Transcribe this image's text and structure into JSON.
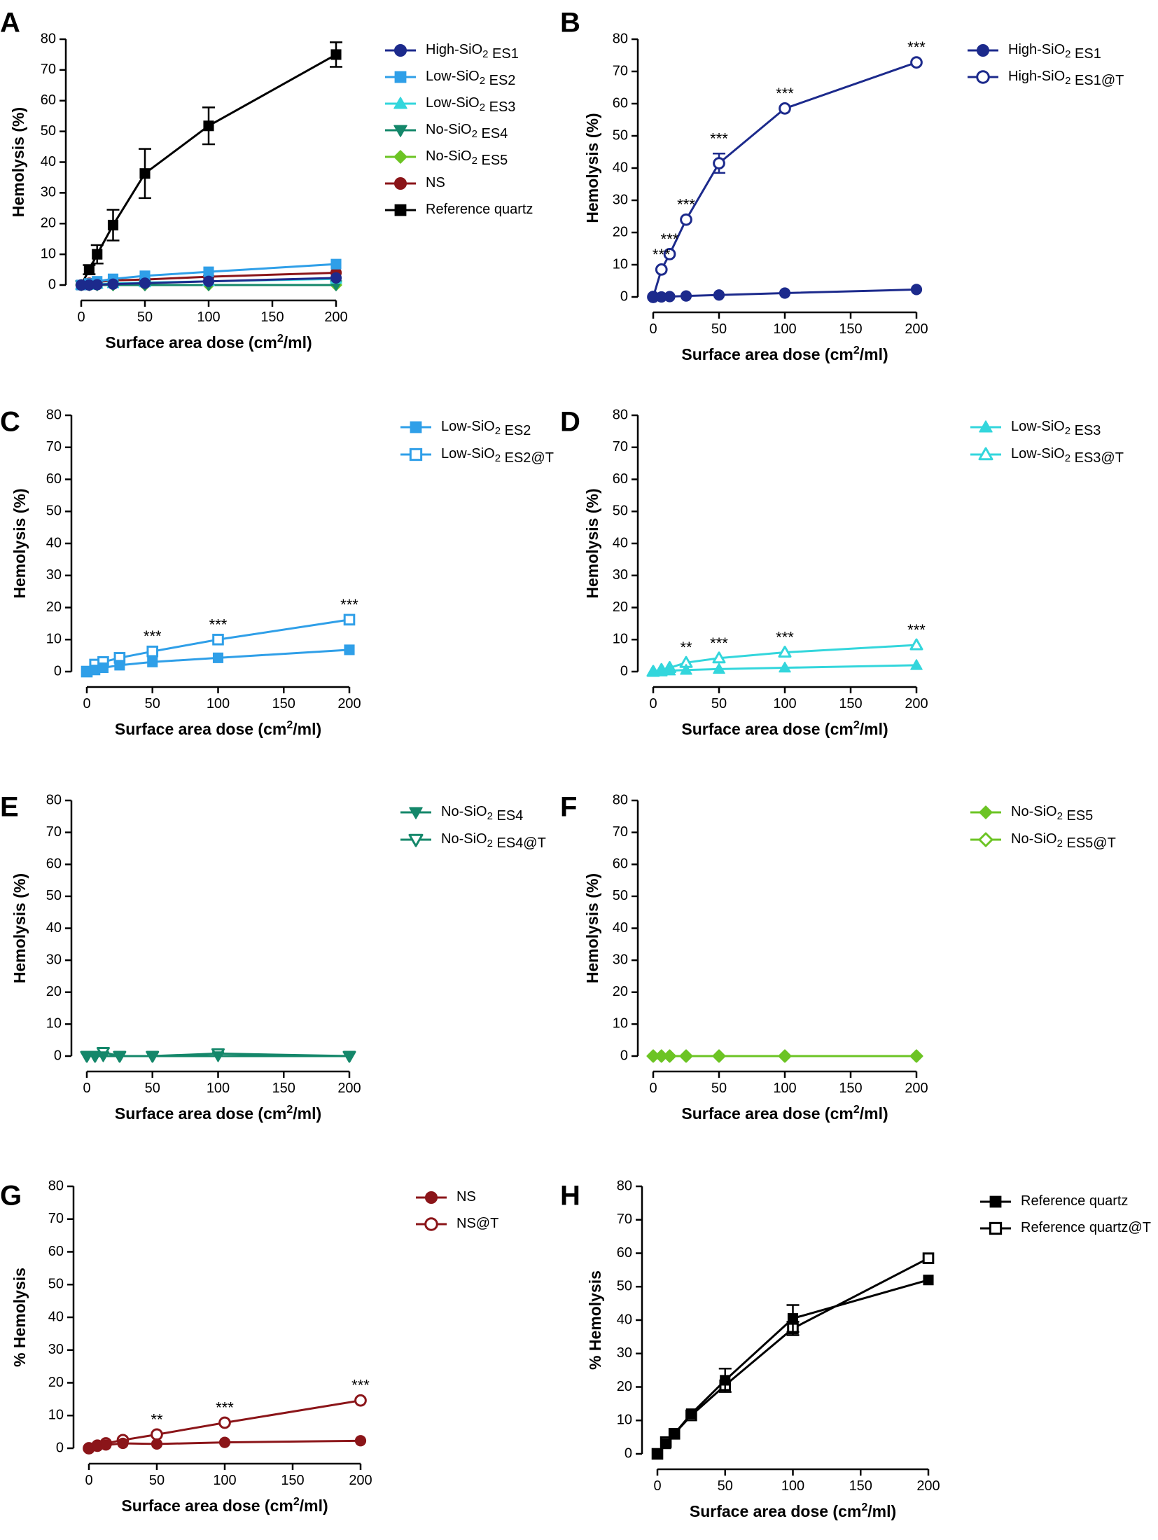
{
  "figure": {
    "panels": [
      {
        "letter": "A",
        "ylabel": "Hemolysis (%)",
        "xlabel": "Surface area dose (cm²/ml)",
        "legend": [
          {
            "label": "High-SiO₂ ES1"
          },
          {
            "label": "Low-SiO₂ ES2"
          },
          {
            "label": "Low-SiO₂ ES3"
          },
          {
            "label": "No-SiO₂ ES4"
          },
          {
            "label": "No-SiO₂ ES5"
          },
          {
            "label": "NS"
          },
          {
            "label": "Reference quartz"
          }
        ]
      },
      {
        "letter": "B",
        "ylabel": "Hemolysis (%)",
        "xlabel": "Surface area dose (cm²/ml)",
        "legend": [
          {
            "label": "High-SiO₂ ES1"
          },
          {
            "label": "High-SiO₂ ES1@T"
          }
        ]
      },
      {
        "letter": "C",
        "ylabel": "Hemolysis (%)",
        "xlabel": "Surface area dose (cm²/ml)",
        "legend": [
          {
            "label": "Low-SiO₂ ES2"
          },
          {
            "label": "Low-SiO₂ ES2@T"
          }
        ]
      },
      {
        "letter": "D",
        "ylabel": "Hemolysis (%)",
        "xlabel": "Surface area dose (cm²/ml)",
        "legend": [
          {
            "label": "Low-SiO₂ ES3"
          },
          {
            "label": "Low-SiO₂ ES3@T"
          }
        ]
      },
      {
        "letter": "E",
        "ylabel": "Hemolysis (%)",
        "xlabel": "Surface area dose (cm²/ml)",
        "legend": [
          {
            "label": "No-SiO₂ ES4"
          },
          {
            "label": "No-SiO₂ ES4@T"
          }
        ]
      },
      {
        "letter": "F",
        "ylabel": "Hemolysis (%)",
        "xlabel": "Surface area dose (cm²/ml)",
        "legend": [
          {
            "label": "No-SiO₂ ES5"
          },
          {
            "label": "No-SiO₂ ES5@T"
          }
        ]
      },
      {
        "letter": "G",
        "ylabel": "% Hemolysis",
        "xlabel": "Surface area dose (cm²/ml)",
        "legend": [
          {
            "label": "NS"
          },
          {
            "label": "NS@T"
          }
        ]
      },
      {
        "letter": "H",
        "ylabel": "% Hemolysis",
        "xlabel": "Surface area dose (cm²/ml)",
        "legend": [
          {
            "label": "Reference quartz"
          },
          {
            "label": "Reference quartz@T"
          }
        ]
      }
    ]
  },
  "chart_data": [
    {
      "panel": "A",
      "type": "line",
      "xlabel": "Surface area dose (cm²/ml)",
      "ylabel": "Hemolysis (%)",
      "xlim": [
        0,
        200
      ],
      "ylim": [
        0,
        80
      ],
      "xticks": [
        0,
        50,
        100,
        150,
        200
      ],
      "yticks": [
        0,
        10,
        20,
        30,
        40,
        50,
        60,
        70,
        80
      ],
      "x": [
        0,
        6.25,
        12.5,
        25,
        50,
        100,
        200
      ],
      "series": [
        {
          "name": "High-SiO₂ ES1",
          "color": "#1c2a8c",
          "marker": "circle",
          "filled": true,
          "values": [
            0,
            0,
            0.1,
            0.3,
            0.6,
            1.2,
            2.3
          ]
        },
        {
          "name": "Low-SiO₂ ES2",
          "color": "#2f9fe8",
          "marker": "square",
          "filled": true,
          "values": [
            0,
            0.5,
            1.2,
            2,
            3,
            4.3,
            6.8
          ]
        },
        {
          "name": "Low-SiO₂ ES3",
          "color": "#33d6dc",
          "marker": "triangle-up",
          "filled": true,
          "values": [
            0,
            0,
            0.3,
            0.5,
            0.8,
            1.2,
            2
          ]
        },
        {
          "name": "No-SiO₂ ES4",
          "color": "#14876a",
          "marker": "triangle-down",
          "filled": true,
          "values": [
            0,
            0,
            0,
            0,
            0,
            0,
            0
          ]
        },
        {
          "name": "No-SiO₂ ES5",
          "color": "#6cc424",
          "marker": "diamond",
          "filled": true,
          "values": [
            0,
            0,
            0,
            0,
            0,
            0,
            0
          ]
        },
        {
          "name": "NS",
          "color": "#8b1519",
          "marker": "circle",
          "filled": true,
          "values": [
            0,
            0.6,
            1,
            1.5,
            1.8,
            2.7,
            4
          ]
        },
        {
          "name": "Reference quartz",
          "color": "#000000",
          "marker": "square",
          "filled": true,
          "values": [
            0,
            5,
            10,
            19.5,
            36.3,
            51.8,
            75
          ],
          "err": [
            0,
            1.5,
            3,
            5,
            8,
            6,
            4
          ]
        }
      ]
    },
    {
      "panel": "B",
      "type": "line",
      "xlabel": "Surface area dose (cm²/ml)",
      "ylabel": "Hemolysis (%)",
      "xlim": [
        0,
        200
      ],
      "ylim": [
        0,
        80
      ],
      "xticks": [
        0,
        50,
        100,
        150,
        200
      ],
      "yticks": [
        0,
        10,
        20,
        30,
        40,
        50,
        60,
        70,
        80
      ],
      "x": [
        0,
        6.25,
        12.5,
        25,
        50,
        100,
        200
      ],
      "series": [
        {
          "name": "High-SiO₂ ES1",
          "color": "#1c2a8c",
          "marker": "circle",
          "filled": true,
          "values": [
            0,
            0,
            0.1,
            0.3,
            0.6,
            1.2,
            2.3
          ]
        },
        {
          "name": "High-SiO₂ ES1@T",
          "color": "#1c2a8c",
          "marker": "circle",
          "filled": false,
          "values": [
            0,
            8.5,
            13.3,
            24,
            41.5,
            58.5,
            72.8
          ],
          "err": [
            0,
            0,
            0,
            0,
            3,
            0,
            0
          ],
          "sig": [
            "",
            "***",
            "***",
            "***",
            "***",
            "***",
            "***"
          ]
        }
      ]
    },
    {
      "panel": "C",
      "type": "line",
      "xlabel": "Surface area dose (cm²/ml)",
      "ylabel": "Hemolysis (%)",
      "xlim": [
        0,
        200
      ],
      "ylim": [
        0,
        80
      ],
      "xticks": [
        0,
        50,
        100,
        150,
        200
      ],
      "yticks": [
        0,
        10,
        20,
        30,
        40,
        50,
        60,
        70,
        80
      ],
      "x": [
        0,
        6.25,
        12.5,
        25,
        50,
        100,
        200
      ],
      "series": [
        {
          "name": "Low-SiO₂ ES2",
          "color": "#2f9fe8",
          "marker": "square",
          "filled": true,
          "values": [
            0,
            0.5,
            1.2,
            2,
            3,
            4.3,
            6.8
          ]
        },
        {
          "name": "Low-SiO₂ ES2@T",
          "color": "#2f9fe8",
          "marker": "square",
          "filled": false,
          "values": [
            0,
            2.2,
            3,
            4.3,
            6.3,
            10,
            16.2
          ],
          "sig": [
            "",
            "",
            "",
            "",
            "***",
            "***",
            "***"
          ]
        }
      ]
    },
    {
      "panel": "D",
      "type": "line",
      "xlabel": "Surface area dose (cm²/ml)",
      "ylabel": "Hemolysis (%)",
      "xlim": [
        0,
        200
      ],
      "ylim": [
        0,
        80
      ],
      "xticks": [
        0,
        50,
        100,
        150,
        200
      ],
      "yticks": [
        0,
        10,
        20,
        30,
        40,
        50,
        60,
        70,
        80
      ],
      "x": [
        0,
        6.25,
        12.5,
        25,
        50,
        100,
        200
      ],
      "series": [
        {
          "name": "Low-SiO₂ ES3",
          "color": "#33d6dc",
          "marker": "triangle-up",
          "filled": true,
          "values": [
            0,
            0,
            0.3,
            0.5,
            0.8,
            1.2,
            2
          ]
        },
        {
          "name": "Low-SiO₂ ES3@T",
          "color": "#33d6dc",
          "marker": "triangle-up",
          "filled": false,
          "values": [
            0,
            0.6,
            1.2,
            2.8,
            4.2,
            6,
            8.3
          ],
          "sig": [
            "",
            "",
            "",
            "**",
            "***",
            "***",
            "***"
          ]
        }
      ]
    },
    {
      "panel": "E",
      "type": "line",
      "xlabel": "Surface area dose (cm²/ml)",
      "ylabel": "Hemolysis (%)",
      "xlim": [
        0,
        200
      ],
      "ylim": [
        0,
        80
      ],
      "xticks": [
        0,
        50,
        100,
        150,
        200
      ],
      "yticks": [
        0,
        10,
        20,
        30,
        40,
        50,
        60,
        70,
        80
      ],
      "x": [
        0,
        6.25,
        12.5,
        25,
        50,
        100,
        200
      ],
      "series": [
        {
          "name": "No-SiO₂ ES4",
          "color": "#14876a",
          "marker": "triangle-down",
          "filled": true,
          "values": [
            0,
            0,
            0,
            0,
            0,
            0,
            0
          ]
        },
        {
          "name": "No-SiO₂ ES4@T",
          "color": "#14876a",
          "marker": "triangle-down",
          "filled": false,
          "values": [
            0,
            0,
            1.2,
            0,
            0,
            0.8,
            0
          ]
        }
      ]
    },
    {
      "panel": "F",
      "type": "line",
      "xlabel": "Surface area dose (cm²/ml)",
      "ylabel": "Hemolysis (%)",
      "xlim": [
        0,
        200
      ],
      "ylim": [
        0,
        80
      ],
      "xticks": [
        0,
        50,
        100,
        150,
        200
      ],
      "yticks": [
        0,
        10,
        20,
        30,
        40,
        50,
        60,
        70,
        80
      ],
      "x": [
        0,
        6.25,
        12.5,
        25,
        50,
        100,
        200
      ],
      "series": [
        {
          "name": "No-SiO₂ ES5",
          "color": "#6cc424",
          "marker": "diamond",
          "filled": true,
          "values": [
            0,
            0,
            0,
            0,
            0,
            0,
            0
          ]
        },
        {
          "name": "No-SiO₂ ES5@T",
          "color": "#6cc424",
          "marker": "diamond",
          "filled": false,
          "values": [
            0,
            0,
            0,
            0,
            0,
            0,
            0
          ]
        }
      ]
    },
    {
      "panel": "G",
      "type": "line",
      "xlabel": "Surface area dose (cm²/ml)",
      "ylabel": "% Hemolysis",
      "xlim": [
        0,
        200
      ],
      "ylim": [
        0,
        80
      ],
      "xticks": [
        0,
        50,
        100,
        150,
        200
      ],
      "yticks": [
        0,
        10,
        20,
        30,
        40,
        50,
        60,
        70,
        80
      ],
      "x": [
        0,
        6.25,
        12.5,
        25,
        50,
        100,
        200
      ],
      "series": [
        {
          "name": "NS",
          "color": "#8b1519",
          "marker": "circle",
          "filled": true,
          "values": [
            0,
            0.6,
            1,
            1.5,
            1.3,
            1.8,
            2.3
          ]
        },
        {
          "name": "NS@T",
          "color": "#8b1519",
          "marker": "circle",
          "filled": false,
          "values": [
            0,
            0.8,
            1.5,
            2.5,
            4.2,
            7.8,
            14.6
          ],
          "sig": [
            "",
            "",
            "",
            "",
            "**",
            "***",
            "***"
          ]
        }
      ]
    },
    {
      "panel": "H",
      "type": "line",
      "xlabel": "Surface area dose (cm²/ml)",
      "ylabel": "% Hemolysis",
      "xlim": [
        0,
        200
      ],
      "ylim": [
        0,
        80
      ],
      "xticks": [
        0,
        50,
        100,
        150,
        200
      ],
      "yticks": [
        0,
        10,
        20,
        30,
        40,
        50,
        60,
        70,
        80
      ],
      "x": [
        0,
        6.25,
        12.5,
        25,
        50,
        100,
        200
      ],
      "series": [
        {
          "name": "Reference quartz",
          "color": "#000000",
          "marker": "square",
          "filled": true,
          "values": [
            0,
            3,
            6,
            12,
            22,
            40.5,
            52
          ],
          "err": [
            0,
            0,
            0,
            0,
            3.5,
            4,
            0
          ]
        },
        {
          "name": "Reference quartz@T",
          "color": "#000000",
          "marker": "square",
          "filled": false,
          "values": [
            0,
            3.5,
            6,
            11.5,
            20.5,
            37.5,
            58.5
          ],
          "err": [
            0,
            0,
            0,
            0,
            0,
            2,
            0
          ]
        }
      ]
    }
  ]
}
